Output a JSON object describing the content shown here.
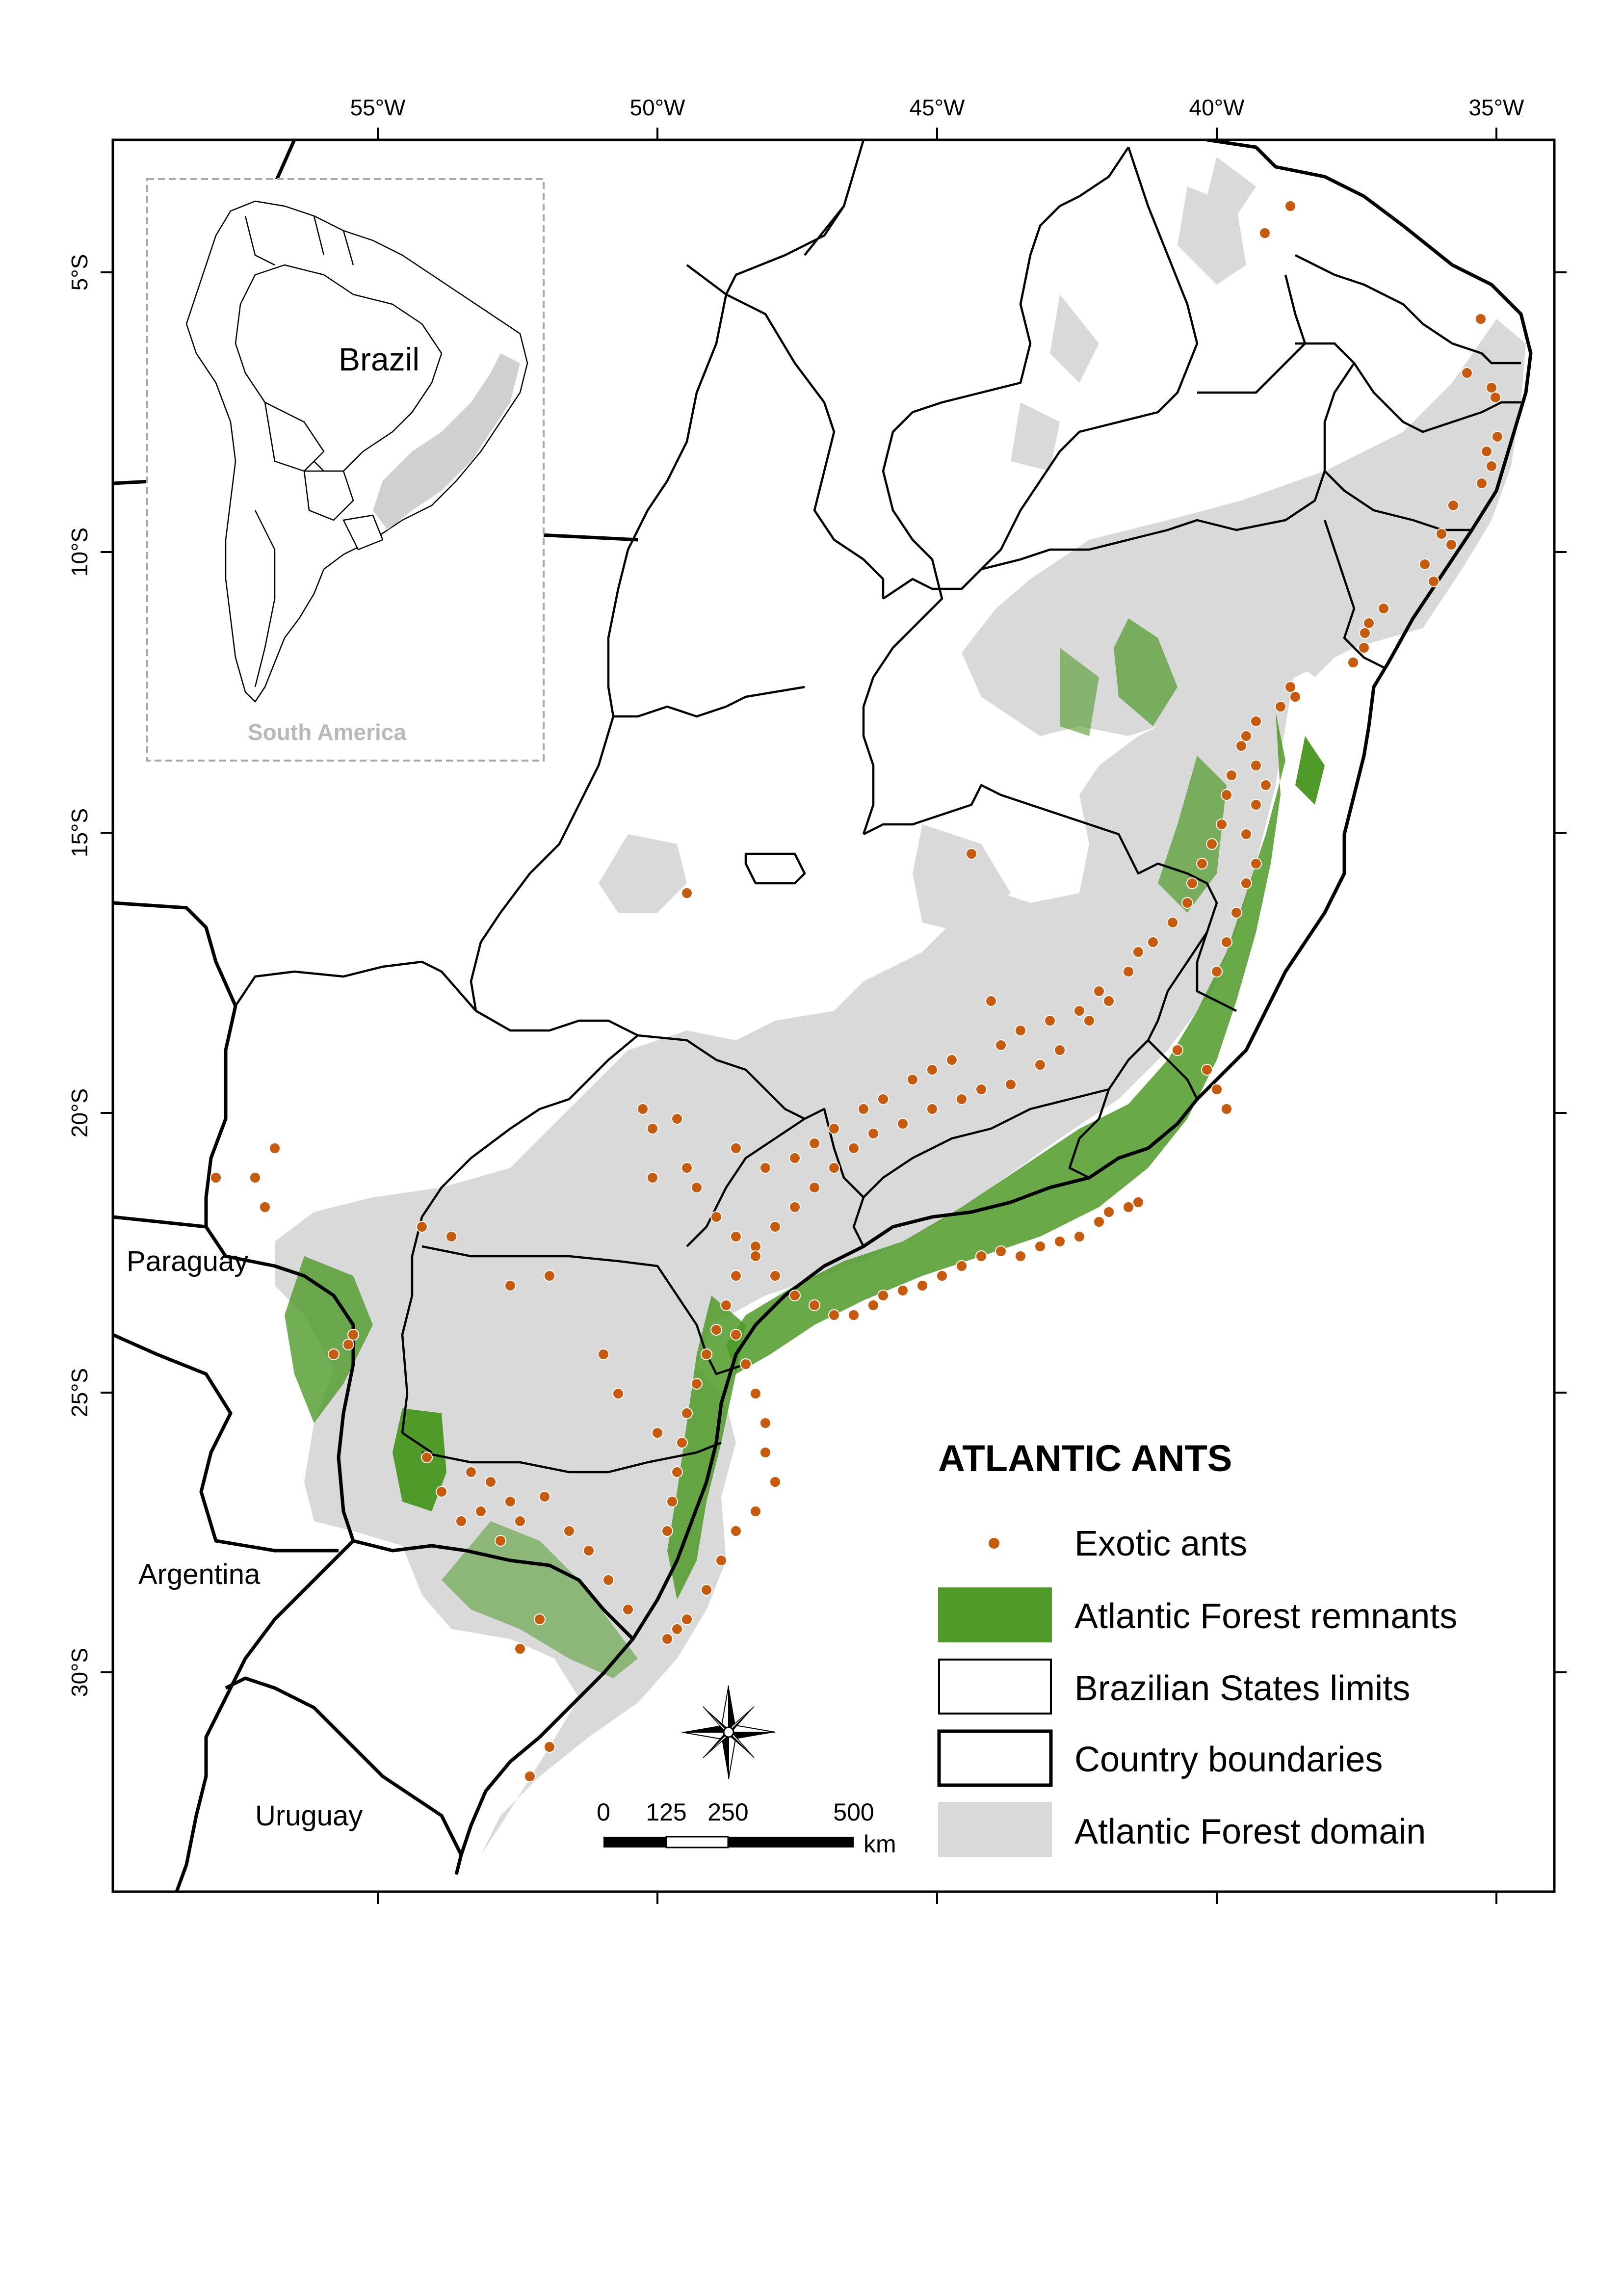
{
  "map": {
    "axes": {
      "longitude_ticks": [
        "55°W",
        "50°W",
        "45°W",
        "40°W",
        "35°W"
      ],
      "latitude_ticks": [
        "5°S",
        "10°S",
        "15°S",
        "20°S",
        "25°S",
        "30°S"
      ]
    },
    "country_labels": {
      "paraguay": "Paraguay",
      "argentina": "Argentina",
      "uruguay": "Uruguay"
    },
    "legend": {
      "title": "ATLANTIC ANTS",
      "items": [
        {
          "key": "exotic_ants",
          "label": "Exotic ants",
          "symbol": "dot",
          "color": "#c65a0d"
        },
        {
          "key": "forest_remnants",
          "label": "Atlantic Forest remnants",
          "symbol": "fill",
          "color": "#4f9a28"
        },
        {
          "key": "state_limits",
          "label": "Brazilian States limits",
          "symbol": "outline-thin",
          "color": "#000000"
        },
        {
          "key": "country_boundaries",
          "label": "Country boundaries",
          "symbol": "outline-thick",
          "color": "#000000"
        },
        {
          "key": "forest_domain",
          "label": "Atlantic Forest domain",
          "symbol": "fill",
          "color": "#d9d9d9"
        }
      ]
    },
    "inset": {
      "title": "Brazil",
      "subtitle": "South America"
    },
    "scale_bar": {
      "labels": [
        "0",
        "125",
        "250",
        "500"
      ],
      "unit": "km"
    },
    "compass": {
      "icon": "compass-rose-icon"
    },
    "colors": {
      "remnants": "#4f9a28",
      "domain": "#d9d9d9",
      "ants": "#c65a0d",
      "boundaries": "#000000"
    }
  }
}
